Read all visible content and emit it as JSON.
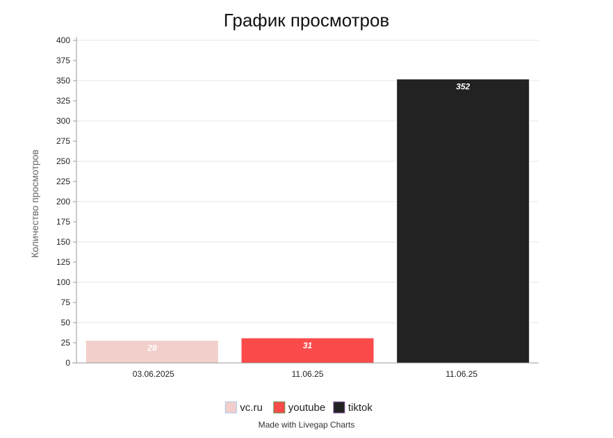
{
  "chart_data": {
    "type": "bar",
    "title": "График просмотров",
    "xlabel": "",
    "ylabel": "Количество просмотров",
    "ylim": [
      0,
      400
    ],
    "y_ticks": [
      "0",
      "25",
      "50",
      "75",
      "100",
      "125",
      "150",
      "175",
      "200",
      "225",
      "250",
      "275",
      "300",
      "325",
      "350",
      "375",
      "400"
    ],
    "grid": true,
    "legend_position": "bottom",
    "categories": [
      "03.06.2025",
      "11.06.25",
      "11.06.25"
    ],
    "series": [
      {
        "name": "vc.ru",
        "color": "#f2cfcb",
        "values": [
          28,
          null,
          null
        ]
      },
      {
        "name": "youtube",
        "color": "#fa4a4a",
        "values": [
          null,
          31,
          null
        ]
      },
      {
        "name": "tiktok",
        "color": "#222222",
        "values": [
          null,
          null,
          352
        ]
      }
    ]
  },
  "footer": {
    "credit": "Made with Livegap Charts"
  }
}
